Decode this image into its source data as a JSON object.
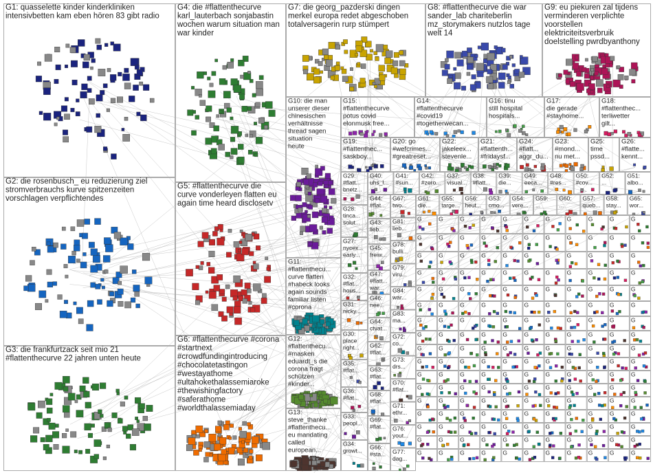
{
  "groups": [
    {
      "lines": [
        "G1: quasselette kinder kinderkliniken",
        "intensivbetten kam eben hören 83 gibt radio"
      ]
    },
    {
      "lines": [
        "G2: die rosenbusch_ eu reduzierung ziel",
        "stromverbrauchs kurve spitzenzeiten",
        "vorschlagen verpflichtendes"
      ]
    },
    {
      "lines": [
        "G3: die frankfurtzack seit mio 21",
        "#flattenthecurve 22 jahren unten heute"
      ]
    },
    {
      "lines": [
        "G4: die #flattenthecurve",
        "karl_lauterbach sonjabastin",
        "wochen warum situation man",
        "war kinder"
      ]
    },
    {
      "lines": [
        "G5: #flattenthecurve die",
        "curve vonderleyen flatten eu",
        "again time heard disclosetv"
      ]
    },
    {
      "lines": [
        "G6: #flattenthecurve #corona",
        "#startnext",
        "#crowdfundingintroducing",
        "#chocolatetastingon",
        "#westayathome",
        "#ultahokethalassemiaroke",
        "#thewishingfactory",
        "#saferathome",
        "#worldthalassemiaday"
      ]
    },
    {
      "lines": [
        "G7: die georg_pazderski dingen",
        "merkel europa redet abgeschoben",
        "totalversagerin rurp stümpert"
      ]
    },
    {
      "lines": [
        "G8: #flattenthecurve die war",
        "sander_lab chariteberlin",
        "mz_storymakers nutzlos tage",
        "welt 14"
      ]
    },
    {
      "lines": [
        "G9: eu piekuren zal tijdens",
        "verminderen verplichte",
        "voorstellen",
        "elektriciteitsverbruik",
        "doelstelling pwrdbyanthony"
      ]
    },
    {
      "lines": [
        "G10: die man",
        "unserer dieser",
        "chinesischen",
        "verhältnisse",
        "thread sagen",
        "situation",
        "heute"
      ]
    },
    {
      "lines": [
        "G11:",
        "#flattenthecu...",
        "curve flatten",
        "#habeck looks",
        "again sounds",
        "familiar listen",
        "#corona"
      ]
    },
    {
      "lines": [
        "G12:",
        "#flattenthecu...",
        "#masken",
        "eduardt_s die",
        "corona fragt",
        "schützen",
        "#kinder..."
      ]
    },
    {
      "lines": [
        "G13:",
        "steve_thanke",
        "#flattenthecu...",
        "eu mandating",
        "called",
        "european..."
      ]
    },
    {
      "lines": [
        "G15:",
        "#flattenthecurve",
        "potus covid",
        "elonmusk free..."
      ]
    },
    {
      "lines": [
        "G14:",
        "#flattenthecurve",
        "#covid19",
        "#togetherwecan..."
      ]
    },
    {
      "lines": [
        "G16: tinu",
        "still hospital",
        "hospitals..."
      ]
    },
    {
      "lines": [
        "G17:",
        "die gerade",
        "#stayhome..."
      ]
    },
    {
      "lines": [
        "G18:",
        "#flattenthec...",
        "terliwetter",
        "gilt..."
      ]
    },
    {
      "lines": [
        "G19:",
        "#flattenthec...",
        "saskboy..."
      ]
    },
    {
      "lines": [
        "G20: go",
        "#wefcrimes...",
        "#greatreset..."
      ]
    },
    {
      "lines": [
        "G22:",
        "jakeleex...",
        "stevenle..."
      ]
    },
    {
      "lines": [
        "G21:",
        "#flattenth...",
        "#fridaysf..."
      ]
    },
    {
      "lines": [
        "G24:",
        "#flatt...",
        "aggr_du..."
      ]
    },
    {
      "lines": [
        "G23:",
        "#mond...",
        "nu met..."
      ]
    },
    {
      "lines": [
        "G25:",
        "time",
        "pssd..."
      ]
    },
    {
      "lines": [
        "G26:",
        "#flatte...",
        "kennt..."
      ]
    },
    {
      "lines": [
        "G29:",
        "#flatt...",
        "bnetz..."
      ]
    },
    {
      "lines": [
        "G40:",
        "uhs_l..."
      ]
    },
    {
      "lines": [
        "G41:",
        "#sun..."
      ]
    },
    {
      "lines": [
        "G42:",
        "#zero..."
      ]
    },
    {
      "lines": [
        "G37:",
        "visual..."
      ]
    },
    {
      "lines": [
        "G38:",
        "#flatt..."
      ]
    },
    {
      "lines": [
        "G39:",
        "die..."
      ]
    },
    {
      "lines": [
        "G49:",
        "eeca..."
      ]
    },
    {
      "lines": [
        "G48:",
        "#res..."
      ]
    },
    {
      "lines": [
        "G50:",
        "#cov..."
      ]
    },
    {
      "lines": [
        "G52:",
        "..."
      ]
    },
    {
      "lines": [
        "G51:",
        "albo..."
      ]
    },
    {
      "lines": [
        "G28:",
        "tinca...",
        "solut..."
      ]
    },
    {
      "lines": [
        "G27:",
        "nycex...",
        "early..."
      ]
    },
    {
      "lines": [
        "G32:",
        "#flat...",
        "hous..."
      ]
    },
    {
      "lines": [
        "G31:",
        "nicky..."
      ]
    },
    {
      "lines": [
        "G30:",
        "place",
        "right..."
      ]
    },
    {
      "lines": [
        "G35:",
        "#flat..."
      ]
    },
    {
      "lines": [
        "G36:",
        "#flat..."
      ]
    },
    {
      "lines": [
        "G33:",
        "peopl..."
      ]
    },
    {
      "lines": [
        "G34:",
        "growt..."
      ]
    },
    {
      "lines": [
        "G44:",
        "#flat..."
      ]
    },
    {
      "lines": [
        "G43:",
        "lieb..."
      ]
    },
    {
      "lines": [
        "G45:",
        "freiw..."
      ]
    },
    {
      "lines": [
        "G47:",
        "#flatt...",
        "war..."
      ]
    },
    {
      "lines": [
        "G46:",
        "nee..."
      ]
    },
    {
      "lines": [
        "G64:",
        "ctvat..."
      ]
    },
    {
      "lines": [
        "G62:",
        "#flat..."
      ]
    },
    {
      "lines": [
        "G63:",
        "#flat..."
      ]
    },
    {
      "lines": [
        "G68:",
        "#flat..."
      ]
    },
    {
      "lines": [
        "G69:",
        "#flat..."
      ]
    },
    {
      "lines": [
        "G66:",
        "#sta..."
      ]
    },
    {
      "lines": [
        "G67:",
        "two..."
      ]
    },
    {
      "lines": [
        "G81:",
        "lieb..."
      ]
    },
    {
      "lines": [
        "G78:",
        "bulli..."
      ]
    },
    {
      "lines": [
        "G79:",
        "viru..."
      ]
    },
    {
      "lines": [
        "G84:",
        "war..."
      ]
    },
    {
      "lines": [
        "G83:",
        "ma..."
      ]
    },
    {
      "lines": [
        "G72:",
        "co..."
      ]
    },
    {
      "lines": [
        "G73:",
        "drs..."
      ]
    },
    {
      "lines": [
        "G70:",
        "#flat..."
      ]
    },
    {
      "lines": [
        "G71:",
        "ethr..."
      ]
    },
    {
      "lines": [
        "G76:",
        "yout..."
      ]
    },
    {
      "lines": [
        "G77:",
        "dag..."
      ]
    },
    {
      "lines": [
        "G61:",
        "die..."
      ]
    },
    {
      "lines": [
        "G55:",
        "targe..."
      ]
    },
    {
      "lines": [
        "G56:",
        "heut..."
      ]
    },
    {
      "lines": [
        "G53:",
        "cmo..."
      ]
    },
    {
      "lines": [
        "G54:",
        "vere..."
      ]
    },
    {
      "lines": [
        "G59:",
        "..."
      ]
    },
    {
      "lines": [
        "G60:",
        "..."
      ]
    },
    {
      "lines": [
        "G57:",
        "queb..."
      ]
    },
    {
      "lines": [
        "G58:",
        "stay..."
      ]
    },
    {
      "lines": [
        "G65:",
        "wor..."
      ]
    }
  ],
  "small_label": "G"
}
